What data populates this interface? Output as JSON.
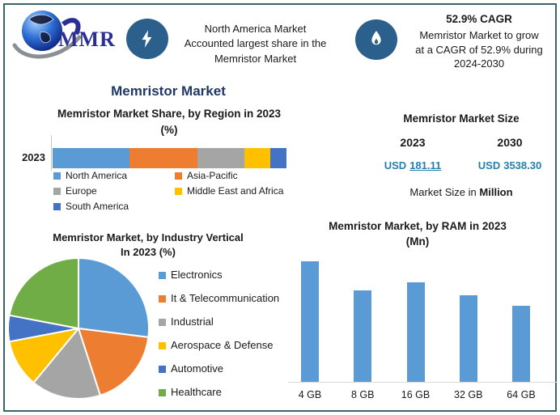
{
  "brand": {
    "logo_text": "MMR"
  },
  "banners": {
    "north_america": {
      "line1": "North America Market",
      "line2": "Accounted largest share in the",
      "line3": "Memristor Market"
    },
    "cagr": {
      "headline": "52.9% CAGR",
      "line1": "Memristor Market to grow",
      "line2": "at a CAGR of 52.9% during",
      "line3": "2024-2030"
    }
  },
  "main_title": "Memristor Market",
  "market_size": {
    "title": "Memristor Market Size",
    "year_left": "2023",
    "year_right": "2030",
    "currency_left": "USD",
    "value_left": "181.11",
    "currency_right": "USD",
    "value_right": "3538.30",
    "note_prefix": "Market Size in",
    "note_bold": "Million"
  },
  "colors": {
    "accent_navy": "#1F3864",
    "badge_blue": "#2B5F8C",
    "value_teal": "#2581AC",
    "frame": "#3C636B",
    "baseline_gray": "#D9D9D9",
    "series": [
      "#5B9BD5",
      "#ED7D31",
      "#A5A5A5",
      "#FFC000",
      "#4472C4",
      "#70AD47"
    ]
  },
  "chart_data": [
    {
      "id": "region_share",
      "type": "bar",
      "subtype": "horizontal-stacked",
      "title": "Memristor Market Share, by Region in 2023 (%)",
      "title_line1": "Memristor Market Share, by Region in 2023",
      "title_line2": "(%)",
      "categories": [
        "2023"
      ],
      "series": [
        {
          "name": "North America",
          "values": [
            33
          ],
          "color": "#5B9BD5"
        },
        {
          "name": "Asia-Pacific",
          "values": [
            29
          ],
          "color": "#ED7D31"
        },
        {
          "name": "Europe",
          "values": [
            20
          ],
          "color": "#A5A5A5"
        },
        {
          "name": "Middle East and Africa",
          "values": [
            11
          ],
          "color": "#FFC000"
        },
        {
          "name": "South America",
          "values": [
            7
          ],
          "color": "#4472C4"
        }
      ],
      "xlim": [
        0,
        100
      ],
      "legend_position": "bottom",
      "grid": false
    },
    {
      "id": "industry_vertical",
      "type": "pie",
      "title": "Memristor Market, by Industry Vertical In 2023 (%)",
      "title_line1": "Memristor Market, by Industry Vertical",
      "title_line2": "In 2023 (%)",
      "labels": [
        "Electronics",
        "It & Telecommunication",
        "Industrial",
        "Aerospace & Defense",
        "Automotive",
        "Healthcare"
      ],
      "values": [
        27,
        18,
        16,
        11,
        6,
        22
      ],
      "colors": [
        "#5B9BD5",
        "#ED7D31",
        "#A5A5A5",
        "#FFC000",
        "#4472C4",
        "#70AD47"
      ],
      "start_angle_deg": 0,
      "legend_position": "right"
    },
    {
      "id": "ram_2023",
      "type": "bar",
      "title": "Memristor Market, by RAM in 2023 (Mn)",
      "title_line1": "Memristor Market, by RAM in 2023",
      "title_line2": "(Mn)",
      "categories": [
        "4 GB",
        "8 GB",
        "16 GB",
        "32 GB",
        "64 GB"
      ],
      "values": [
        46,
        35,
        38,
        33,
        29
      ],
      "unit": "Mn",
      "ylim": [
        0,
        50
      ],
      "bar_color": "#5B9BD5",
      "grid": false,
      "y_axis_visible": false
    }
  ]
}
